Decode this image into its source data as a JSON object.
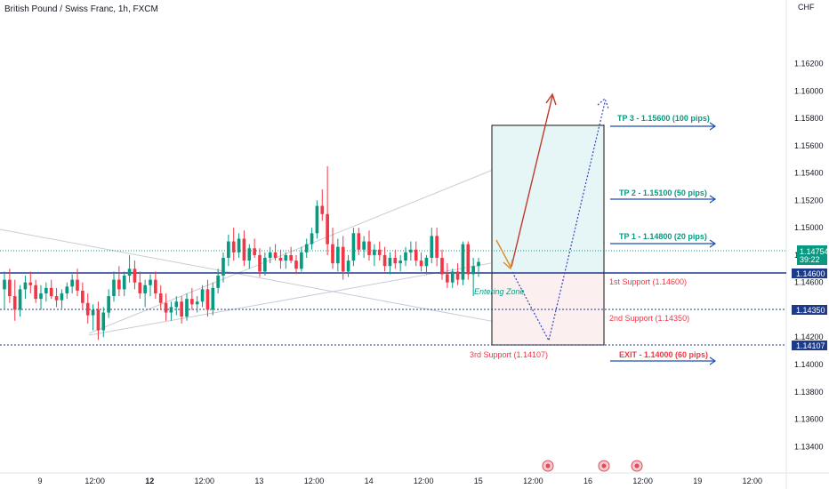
{
  "header": {
    "title": "British Pound / Swiss Franc, 1h, FXCM",
    "currency": "CHF"
  },
  "colors": {
    "up": "#089981",
    "down": "#f23645",
    "support_line": "#1e3a8a",
    "tp_text": "#089981",
    "support_text": "#f23645",
    "arrow_blue": "#1e4fae",
    "box_fill_green": "#e6f6f6",
    "box_fill_red": "#fbeff0"
  },
  "chart_data": {
    "type": "candlestick",
    "title": "British Pound / Swiss Franc, 1h, FXCM",
    "ylim": [
      1.1322,
      1.166
    ],
    "y_ticks": [
      "1.16200",
      "1.16000",
      "1.15800",
      "1.15600",
      "1.15400",
      "1.15200",
      "1.15000",
      "1.14800",
      "1.14600",
      "1.14400",
      "1.14200",
      "1.14000",
      "1.13800",
      "1.13600",
      "1.13400"
    ],
    "x_ticks": [
      {
        "label": "9",
        "bold": false
      },
      {
        "label": "12:00",
        "bold": false
      },
      {
        "label": "12",
        "bold": true
      },
      {
        "label": "12:00",
        "bold": false
      },
      {
        "label": "13",
        "bold": false
      },
      {
        "label": "12:00",
        "bold": false
      },
      {
        "label": "14",
        "bold": false
      },
      {
        "label": "12:00",
        "bold": false
      },
      {
        "label": "15",
        "bold": false
      },
      {
        "label": "12:00",
        "bold": false
      },
      {
        "label": "16",
        "bold": false
      },
      {
        "label": "12:00",
        "bold": false
      },
      {
        "label": "19",
        "bold": false
      },
      {
        "label": "12:00",
        "bold": false
      }
    ],
    "candles": [
      [
        1.1455,
        1.1468,
        1.144,
        1.1462
      ],
      [
        1.1462,
        1.147,
        1.1445,
        1.145
      ],
      [
        1.145,
        1.1462,
        1.1432,
        1.144
      ],
      [
        1.144,
        1.1458,
        1.1435,
        1.1455
      ],
      [
        1.1455,
        1.1465,
        1.1448,
        1.146
      ],
      [
        1.146,
        1.1468,
        1.1452,
        1.1458
      ],
      [
        1.1458,
        1.1462,
        1.1445,
        1.1448
      ],
      [
        1.1448,
        1.1458,
        1.144,
        1.1452
      ],
      [
        1.1452,
        1.146,
        1.1446,
        1.1456
      ],
      [
        1.1456,
        1.1462,
        1.1448,
        1.145
      ],
      [
        1.145,
        1.1456,
        1.1442,
        1.1447
      ],
      [
        1.1447,
        1.1455,
        1.1441,
        1.1452
      ],
      [
        1.1452,
        1.146,
        1.1448,
        1.1457
      ],
      [
        1.1457,
        1.1466,
        1.1452,
        1.1462
      ],
      [
        1.1462,
        1.147,
        1.145,
        1.1454
      ],
      [
        1.1454,
        1.146,
        1.144,
        1.1445
      ],
      [
        1.1445,
        1.1452,
        1.143,
        1.1436
      ],
      [
        1.1436,
        1.1444,
        1.1425,
        1.144
      ],
      [
        1.144,
        1.1446,
        1.1418,
        1.1425
      ],
      [
        1.1425,
        1.1442,
        1.142,
        1.1438
      ],
      [
        1.1438,
        1.1455,
        1.1434,
        1.145
      ],
      [
        1.145,
        1.1468,
        1.1446,
        1.1462
      ],
      [
        1.1462,
        1.1472,
        1.145,
        1.1455
      ],
      [
        1.1455,
        1.1468,
        1.145,
        1.1465
      ],
      [
        1.1465,
        1.148,
        1.146,
        1.147
      ],
      [
        1.147,
        1.1476,
        1.1455,
        1.146
      ],
      [
        1.146,
        1.1468,
        1.1448,
        1.1452
      ],
      [
        1.1452,
        1.1462,
        1.1442,
        1.1458
      ],
      [
        1.1458,
        1.1466,
        1.145,
        1.1462
      ],
      [
        1.1462,
        1.1468,
        1.1448,
        1.1452
      ],
      [
        1.1452,
        1.1458,
        1.144,
        1.1445
      ],
      [
        1.1445,
        1.1452,
        1.1432,
        1.1438
      ],
      [
        1.1438,
        1.1446,
        1.1432,
        1.1442
      ],
      [
        1.1442,
        1.145,
        1.1436,
        1.1446
      ],
      [
        1.1446,
        1.145,
        1.143,
        1.1435
      ],
      [
        1.1435,
        1.1452,
        1.1432,
        1.1448
      ],
      [
        1.1448,
        1.1456,
        1.144,
        1.1444
      ],
      [
        1.1444,
        1.145,
        1.1438,
        1.1446
      ],
      [
        1.1446,
        1.1458,
        1.1442,
        1.1455
      ],
      [
        1.1455,
        1.1462,
        1.1435,
        1.144
      ],
      [
        1.144,
        1.146,
        1.1436,
        1.1456
      ],
      [
        1.1456,
        1.147,
        1.1452,
        1.1465
      ],
      [
        1.1465,
        1.1482,
        1.146,
        1.1478
      ],
      [
        1.1478,
        1.1495,
        1.1472,
        1.149
      ],
      [
        1.149,
        1.15,
        1.1476,
        1.1482
      ],
      [
        1.1482,
        1.1496,
        1.1478,
        1.1492
      ],
      [
        1.1492,
        1.1498,
        1.1472,
        1.1476
      ],
      [
        1.1476,
        1.1488,
        1.147,
        1.1485
      ],
      [
        1.1485,
        1.1492,
        1.1478,
        1.148
      ],
      [
        1.148,
        1.1485,
        1.1464,
        1.1468
      ],
      [
        1.1468,
        1.1482,
        1.1465,
        1.1478
      ],
      [
        1.1478,
        1.1486,
        1.1474,
        1.1482
      ],
      [
        1.1482,
        1.1488,
        1.1476,
        1.1478
      ],
      [
        1.1478,
        1.1484,
        1.147,
        1.1476
      ],
      [
        1.1476,
        1.1482,
        1.147,
        1.148
      ],
      [
        1.148,
        1.1486,
        1.1474,
        1.1476
      ],
      [
        1.1476,
        1.148,
        1.1466,
        1.147
      ],
      [
        1.147,
        1.1486,
        1.1468,
        1.1482
      ],
      [
        1.1482,
        1.1492,
        1.1478,
        1.1488
      ],
      [
        1.1488,
        1.15,
        1.1484,
        1.1496
      ],
      [
        1.1496,
        1.152,
        1.1492,
        1.1516
      ],
      [
        1.1516,
        1.1528,
        1.1505,
        1.151
      ],
      [
        1.151,
        1.1545,
        1.148,
        1.1488
      ],
      [
        1.1488,
        1.15,
        1.147,
        1.1474
      ],
      [
        1.1474,
        1.1492,
        1.1468,
        1.1486
      ],
      [
        1.1486,
        1.1494,
        1.1462,
        1.1468
      ],
      [
        1.1468,
        1.148,
        1.1464,
        1.1476
      ],
      [
        1.1476,
        1.15,
        1.1472,
        1.1496
      ],
      [
        1.1496,
        1.15,
        1.148,
        1.1484
      ],
      [
        1.1484,
        1.1494,
        1.1478,
        1.149
      ],
      [
        1.149,
        1.1498,
        1.1476,
        1.148
      ],
      [
        1.148,
        1.1488,
        1.1472,
        1.1484
      ],
      [
        1.1484,
        1.149,
        1.1476,
        1.148
      ],
      [
        1.148,
        1.1486,
        1.1468,
        1.1472
      ],
      [
        1.1472,
        1.1482,
        1.1466,
        1.1478
      ],
      [
        1.1478,
        1.1484,
        1.147,
        1.1474
      ],
      [
        1.1474,
        1.148,
        1.1468,
        1.1476
      ],
      [
        1.1476,
        1.1486,
        1.1472,
        1.1482
      ],
      [
        1.1482,
        1.149,
        1.1476,
        1.1484
      ],
      [
        1.1484,
        1.149,
        1.1472,
        1.1476
      ],
      [
        1.1476,
        1.1482,
        1.1468,
        1.1472
      ],
      [
        1.1472,
        1.148,
        1.1466,
        1.1478
      ],
      [
        1.1478,
        1.15,
        1.1474,
        1.1494
      ],
      [
        1.1494,
        1.15,
        1.1472,
        1.1478
      ],
      [
        1.1478,
        1.1484,
        1.1462,
        1.1466
      ],
      [
        1.1466,
        1.1474,
        1.1456,
        1.146
      ],
      [
        1.146,
        1.147,
        1.1456,
        1.1468
      ],
      [
        1.1468,
        1.1474,
        1.1458,
        1.1462
      ],
      [
        1.1462,
        1.149,
        1.1458,
        1.1488
      ],
      [
        1.1488,
        1.149,
        1.1462,
        1.1466
      ],
      [
        1.1466,
        1.1478,
        1.145,
        1.1472
      ],
      [
        1.1472,
        1.1478,
        1.1464,
        1.1475
      ]
    ]
  },
  "levels": {
    "support_1": "1.14600",
    "support_2": "1.14350",
    "support_3": "1.14107"
  },
  "annotations": {
    "tp3": "TP 3 - 1.15600 (100 pips)",
    "tp2": "TP 2 - 1.15100 (50 pips)",
    "tp1": "TP 1 - 1.14800 (20 pips)",
    "s1": "1st Support  (1.14600)",
    "s2": "2nd Support  (1.14350)",
    "s3": "3rd Support (1.14107)",
    "exit": "EXIT - 1.14000 (60 pips)",
    "entering_zone": "Entering Zone"
  },
  "price_boxes": {
    "current_price": "1.14754",
    "countdown": "39:22",
    "s1_label": "1.14600",
    "s2_label": "1.14350",
    "s3_label": "1.14107"
  }
}
